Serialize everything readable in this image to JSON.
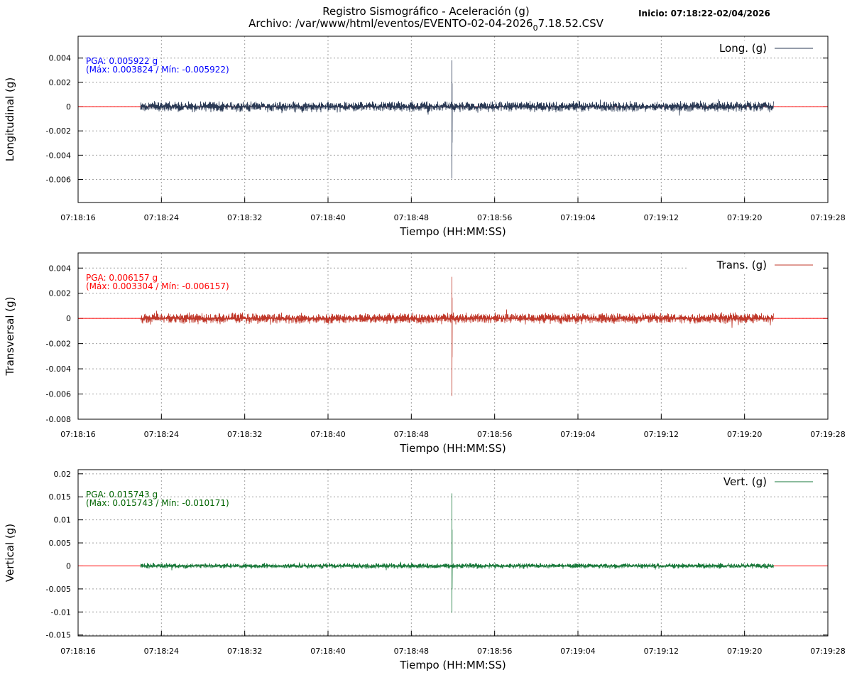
{
  "header": {
    "title": "Registro Sismográfico - Aceleración (g)",
    "file_prefix": "Archivo: /var/www/html/eventos/EVENTO-02-04-2026",
    "file_subscript": "0",
    "file_suffix": "7.18.52.CSV",
    "start": "Inicio: 07:18:22-02/04/2026"
  },
  "chart_data": [
    {
      "type": "line",
      "ylabel": "Longitudinal (g)",
      "xlabel": "Tiempo (HH:MM:SS)",
      "legend": "Long. (g)",
      "legend_placement": "top-right",
      "color": "#2b3a55",
      "pga_text": "PGA: 0.005922 g",
      "maxmin_text": "(Máx: 0.003824 / Mín: -0.005922)",
      "annotation_color": "#0000ff",
      "max": 0.003824,
      "min": -0.005922,
      "noise_amplitude": 0.0005,
      "yticks": [
        -0.006,
        -0.004,
        -0.002,
        0,
        0.002,
        0.004
      ],
      "ytick_labels": [
        "-0.006",
        "-0.004",
        "-0.002",
        "0",
        "0.002",
        "0.004"
      ],
      "ylim": [
        -0.0079,
        0.0058
      ]
    },
    {
      "type": "line",
      "ylabel": "Transversal (g)",
      "xlabel": "Tiempo (HH:MM:SS)",
      "legend": "Trans. (g)",
      "legend_placement": "top-right",
      "color": "#c0392b",
      "pga_text": "PGA: 0.006157 g",
      "maxmin_text": "(Máx: 0.003304 / Mín: -0.006157)",
      "annotation_color": "#ff0000",
      "max": 0.003304,
      "min": -0.006157,
      "noise_amplitude": 0.0005,
      "yticks": [
        -0.008,
        -0.006,
        -0.004,
        -0.002,
        0,
        0.002,
        0.004
      ],
      "ytick_labels": [
        "-0.008",
        "-0.006",
        "-0.004",
        "-0.002",
        "0",
        "0.002",
        "0.004"
      ],
      "ylim": [
        -0.008,
        0.0052
      ]
    },
    {
      "type": "line",
      "ylabel": "Vertical (g)",
      "xlabel": "Tiempo (HH:MM:SS)",
      "legend": "Vert. (g)",
      "legend_placement": "top-right",
      "color": "#1a7a3c",
      "pga_text": "PGA: 0.015743 g",
      "maxmin_text": "(Máx: 0.015743 / Mín: -0.010171)",
      "annotation_color": "#006400",
      "max": 0.015743,
      "min": -0.010171,
      "noise_amplitude": 0.0007,
      "yticks": [
        -0.015,
        -0.01,
        -0.005,
        0,
        0.005,
        0.01,
        0.015,
        0.02
      ],
      "ytick_labels": [
        "-0.015",
        "-0.01",
        "-0.005",
        "0",
        "0.005",
        "0.01",
        "0.015",
        "0.02"
      ],
      "ylim": [
        -0.0152,
        0.0209
      ]
    }
  ],
  "x_axis": {
    "xlim": [
      "07:18:16",
      "07:19:28"
    ],
    "tick_labels": [
      "07:18:16",
      "07:18:24",
      "07:18:32",
      "07:18:40",
      "07:18:48",
      "07:18:56",
      "07:19:04",
      "07:19:12",
      "07:19:20",
      "07:19:28"
    ],
    "signal_start": "07:18:22",
    "signal_end": "07:19:22.8",
    "peak_time": "07:18:51.9",
    "zero_line_color": "#ff0000",
    "grid": true
  }
}
